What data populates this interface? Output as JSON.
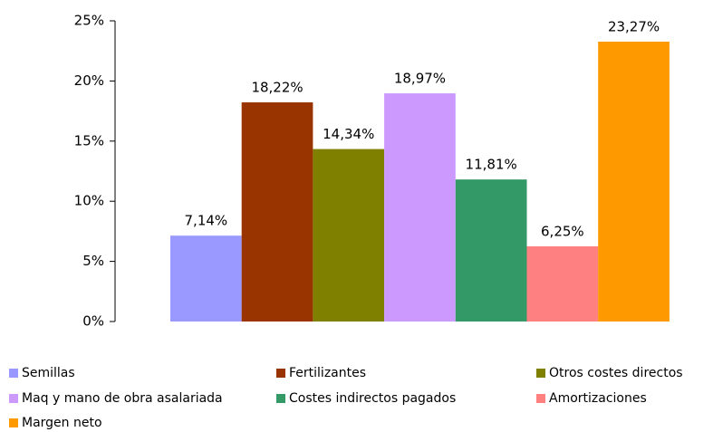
{
  "chart_data": {
    "type": "bar",
    "ylim": [
      0,
      25
    ],
    "yticks": [
      {
        "value": 0,
        "label": "0%"
      },
      {
        "value": 5,
        "label": "5%"
      },
      {
        "value": 10,
        "label": "10%"
      },
      {
        "value": 15,
        "label": "15%"
      },
      {
        "value": 20,
        "label": "20%"
      },
      {
        "value": 25,
        "label": "25%"
      }
    ],
    "legend": "bottom",
    "series": [
      {
        "name": "Semillas",
        "color": "#9999ff",
        "values": [
          7.14
        ],
        "value_labels": [
          "7,14%"
        ]
      },
      {
        "name": "Fertilizantes",
        "color": "#993300",
        "values": [
          18.22
        ],
        "value_labels": [
          "18,22%"
        ]
      },
      {
        "name": "Otros costes directos",
        "color": "#808000",
        "values": [
          14.34
        ],
        "value_labels": [
          "14,34%"
        ]
      },
      {
        "name": "Maq y mano de obra asalariada",
        "color": "#cc99ff",
        "values": [
          18.97
        ],
        "value_labels": [
          "18,97%"
        ]
      },
      {
        "name": "Costes indirectos pagados",
        "color": "#339966",
        "values": [
          11.81
        ],
        "value_labels": [
          "11,81%"
        ]
      },
      {
        "name": "Amortizaciones",
        "color": "#ff8080",
        "values": [
          6.25
        ],
        "value_labels": [
          "6,25%"
        ]
      },
      {
        "name": "Margen neto",
        "color": "#ff9900",
        "values": [
          23.27
        ],
        "value_labels": [
          "23,27%"
        ]
      }
    ]
  }
}
